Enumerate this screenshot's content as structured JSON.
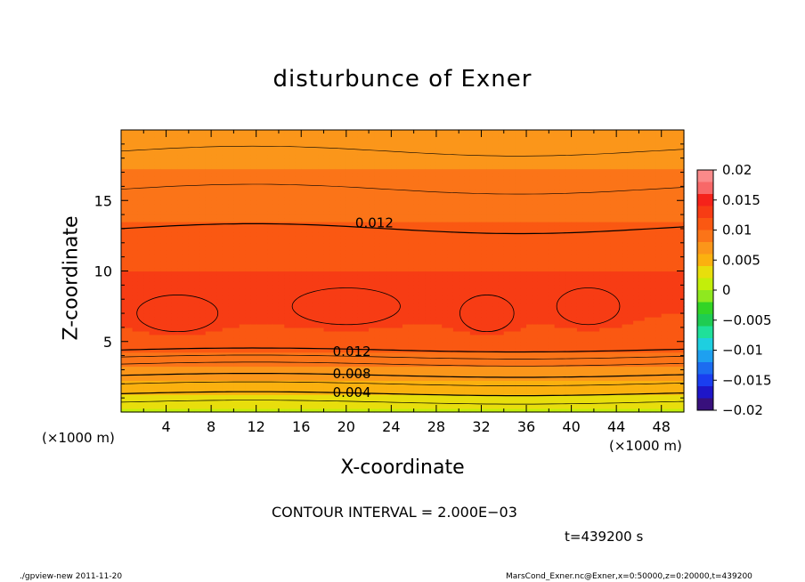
{
  "chart_data": {
    "type": "heatmap",
    "title": "disturbunce of Exner",
    "xlabel": "X-coordinate",
    "ylabel": "Z-coordinate",
    "x_unit_left": "(×1000 m)",
    "x_unit_right": "(×1000 m)",
    "xlim": [
      0,
      50
    ],
    "ylim": [
      0,
      20
    ],
    "x_ticks": [
      4,
      8,
      12,
      16,
      20,
      24,
      28,
      32,
      36,
      40,
      44,
      48
    ],
    "y_ticks": [
      5,
      10,
      15
    ],
    "colorbar": {
      "tick_labels": [
        "0.02",
        "0.015",
        "0.01",
        "0.005",
        "0",
        "−0.005",
        "−0.01",
        "−0.015",
        "−0.02"
      ],
      "levels": [
        0.02,
        0.015,
        0.01,
        0.005,
        0,
        -0.005,
        -0.01,
        -0.015,
        -0.02
      ],
      "colors": [
        "#fa8a8a",
        "#f86868",
        "#f5221a",
        "#f73c14",
        "#fa5812",
        "#fb7418",
        "#fb961a",
        "#fbb10f",
        "#e8de0c",
        "#c3ee0a",
        "#8fe81f",
        "#32d426",
        "#1fcc52",
        "#1fe09a",
        "#1ecfe0",
        "#1ea0f0",
        "#1c6cf0",
        "#1a3ef0",
        "#1e16c8",
        "#38107c"
      ]
    },
    "contour_labels": [
      {
        "text": "0.012",
        "x": 22.5,
        "z": 13.4
      },
      {
        "text": "0.012",
        "x": 20.5,
        "z": 4.3
      },
      {
        "text": "0.008",
        "x": 20.5,
        "z": 2.7
      },
      {
        "text": "0.004",
        "x": 20.5,
        "z": 1.4
      }
    ],
    "contour_interval": "CONTOUR INTERVAL = 2.000E−03",
    "time_label": "t=439200 s"
  },
  "footer": {
    "left": "./gpview-new   2011-11-20",
    "right": "MarsCond_Exner.nc@Exner,x=0:50000,z=0:20000,t=439200"
  }
}
